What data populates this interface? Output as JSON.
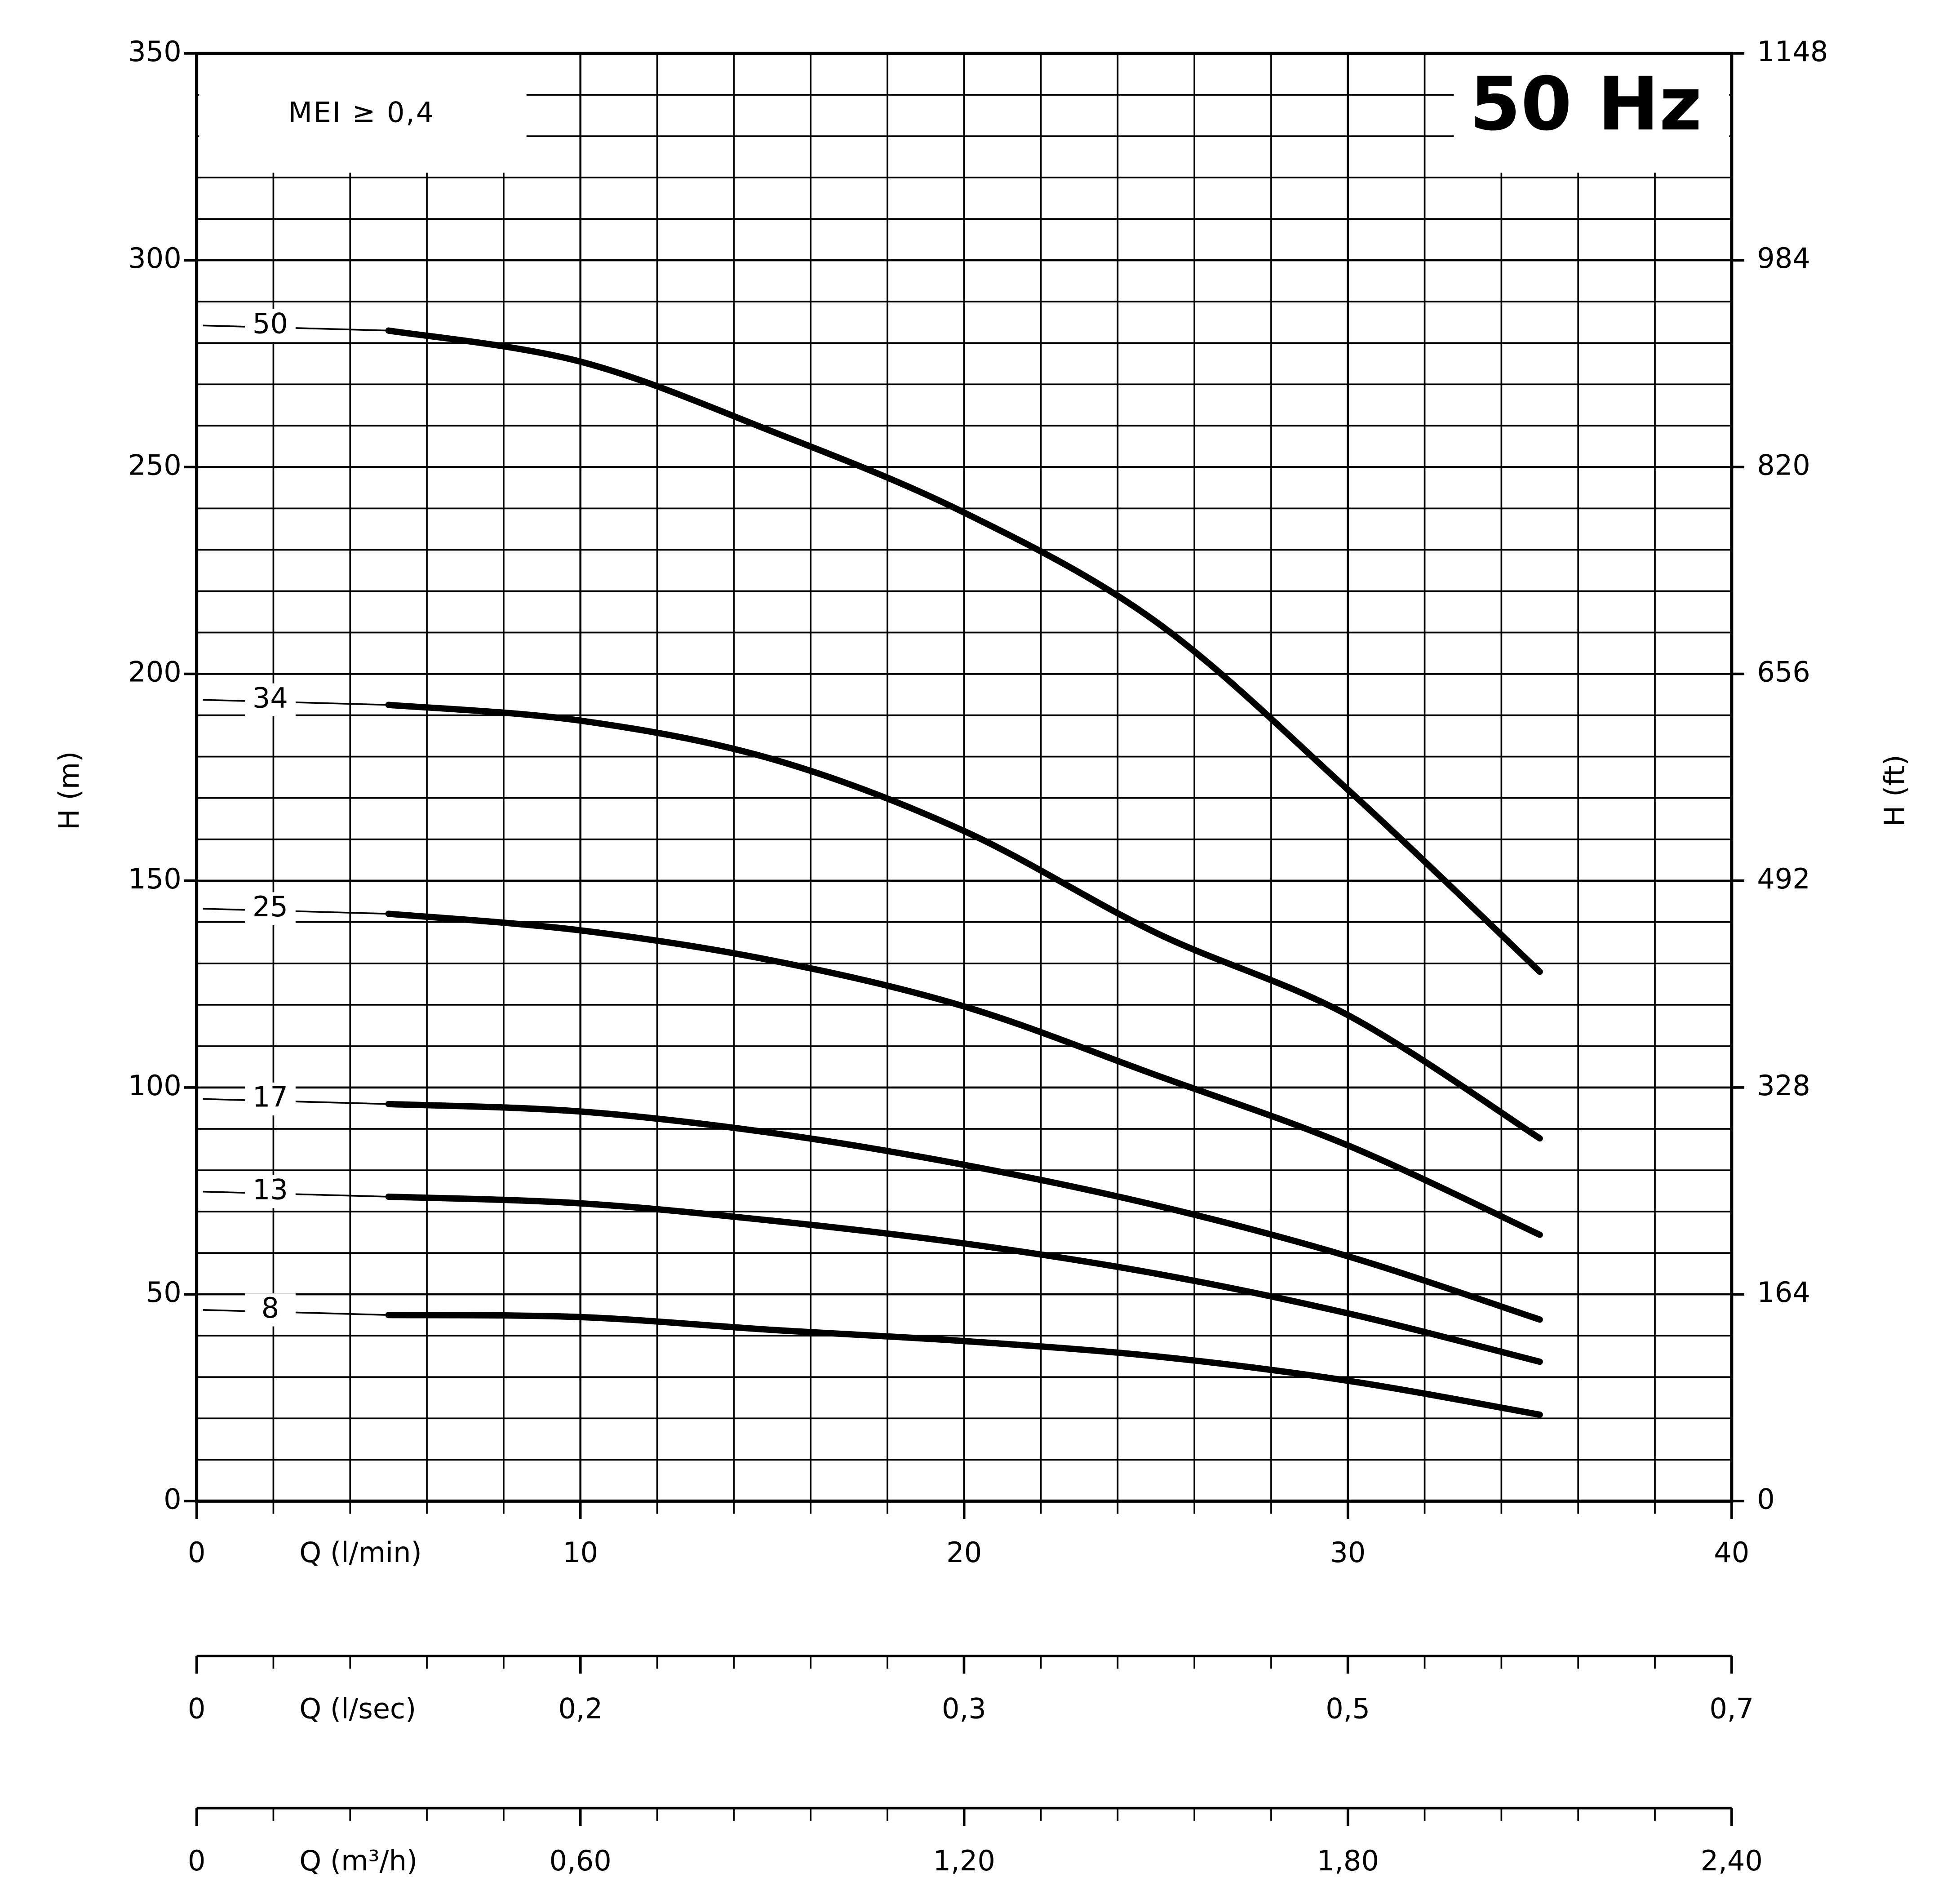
{
  "chart_data": {
    "type": "line",
    "annotation": "MEI ≥ 0,4",
    "title": "50 Hz",
    "ylabel": "H (m)",
    "y2label": "H (ft)",
    "xlabel": "Q (l/min)",
    "x": [
      5,
      10,
      15,
      20,
      25,
      30,
      35
    ],
    "series": [
      {
        "name": "50",
        "color": "#000000",
        "values": [
          283,
          275.5,
          258.6,
          239,
          212.6,
          172,
          128
        ]
      },
      {
        "name": "34",
        "color": "#000000",
        "values": [
          192.5,
          188.7,
          179.4,
          162,
          137.4,
          117.5,
          87.7
        ]
      },
      {
        "name": "25",
        "color": "#000000",
        "values": [
          142,
          138,
          130.7,
          119.6,
          103,
          86,
          64.4
        ]
      },
      {
        "name": "17",
        "color": "#000000",
        "values": [
          96,
          94.2,
          89,
          81.3,
          71.5,
          59.2,
          43.9
        ]
      },
      {
        "name": "13",
        "color": "#000000",
        "values": [
          73.6,
          72,
          67.8,
          62.3,
          55,
          45.4,
          33.7
        ]
      },
      {
        "name": "8",
        "color": "#000000",
        "values": [
          45,
          44.5,
          41.4,
          38.7,
          35,
          29.1,
          20.9
        ]
      }
    ],
    "xlim": [
      0,
      40
    ],
    "xticks": [
      0,
      10,
      20,
      30,
      40
    ],
    "xminorticks": [
      2,
      4,
      6,
      8,
      12,
      14,
      16,
      18,
      22,
      24,
      26,
      28,
      32,
      34,
      36,
      38
    ],
    "ylim": [
      0,
      350
    ],
    "yticks": [
      0,
      50,
      100,
      150,
      200,
      250,
      300,
      350
    ],
    "yminorticks": [
      10,
      20,
      30,
      40,
      60,
      70,
      80,
      90,
      110,
      120,
      130,
      140,
      160,
      170,
      180,
      190,
      210,
      220,
      230,
      240,
      260,
      270,
      280,
      290,
      310,
      320,
      330,
      340
    ],
    "y2lim": [
      0,
      1148
    ],
    "y2ticks": [
      0,
      164,
      328,
      492,
      656,
      820,
      984,
      1148
    ],
    "grid": true,
    "extra_x_axes": [
      {
        "label": "Q (l/sec)",
        "xlim": [
          0,
          0.6667
        ],
        "xticks": [
          0,
          {
            "value": 0.1667,
            "label": "0,2"
          },
          {
            "value": 0.3333,
            "label": "0,3"
          },
          {
            "value": 0.5,
            "label": "0,5"
          },
          {
            "value": 0.6667,
            "label": "0,7"
          }
        ]
      },
      {
        "label": "Q (m³/h)",
        "xlim": [
          0,
          2.4
        ],
        "xticks": [
          0,
          {
            "value": 0.6,
            "label": "0,60"
          },
          {
            "value": 1.2,
            "label": "1,20"
          },
          {
            "value": 1.8,
            "label": "1,80"
          },
          {
            "value": 2.4,
            "label": "2,40"
          }
        ]
      }
    ]
  }
}
